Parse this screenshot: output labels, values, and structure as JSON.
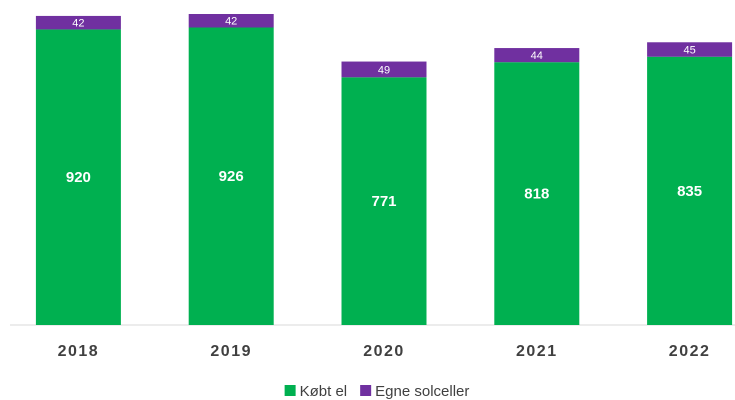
{
  "chart_data": {
    "type": "stacked_bar",
    "categories": [
      "2018",
      "2019",
      "2020",
      "2021",
      "2022"
    ],
    "series": [
      {
        "name": "Købt el",
        "color": "#00b050",
        "values": [
          920,
          926,
          771,
          818,
          835
        ]
      },
      {
        "name": "Egne solceller",
        "color": "#7030a0",
        "values": [
          42,
          42,
          49,
          44,
          45
        ]
      }
    ],
    "legend": "bottom"
  }
}
